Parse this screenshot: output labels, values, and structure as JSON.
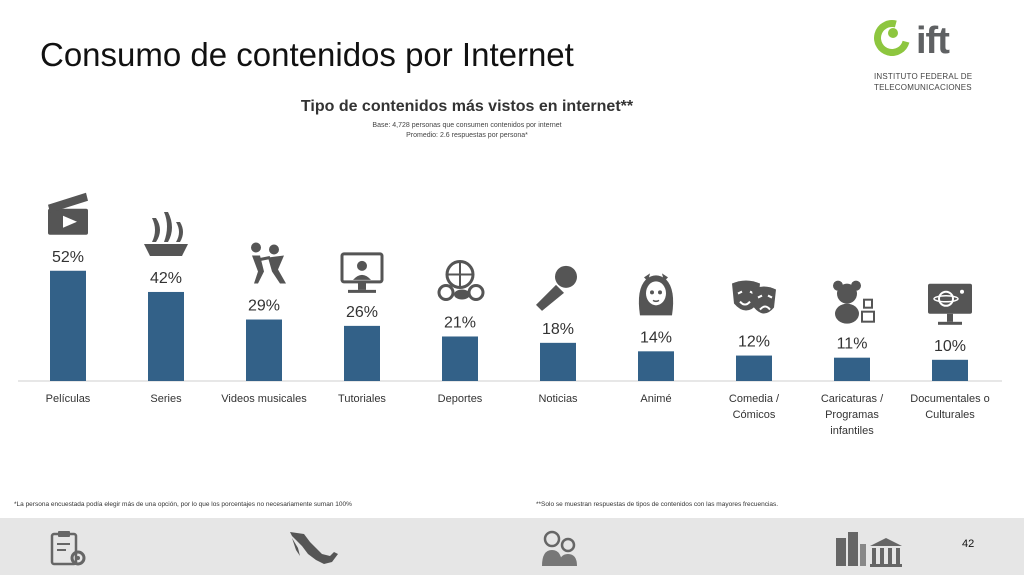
{
  "slide": {
    "title": "Consumo de contenidos por Internet",
    "page_number": "42"
  },
  "logo": {
    "word": "ift",
    "line1": "INSTITUTO FEDERAL DE",
    "line2": "TELECOMUNICACIONES",
    "color": "#8dc63f"
  },
  "chart_data": {
    "type": "bar",
    "title": "Tipo de contenidos más vistos en internet**",
    "subtitle": "Base: 4,728 personas que consumen contenidos por internet",
    "subtitle2": "Promedio: 2.6 respuestas por persona*",
    "categories": [
      [
        "Películas"
      ],
      [
        "Series"
      ],
      [
        "Videos musicales"
      ],
      [
        "Tutoriales"
      ],
      [
        "Deportes"
      ],
      [
        "Noticias"
      ],
      [
        "Animé"
      ],
      [
        "Comedia /",
        "Cómicos"
      ],
      [
        "Caricaturas /",
        "Programas",
        "infantiles"
      ],
      [
        "Documentales o",
        "Culturales"
      ]
    ],
    "values": [
      52,
      42,
      29,
      26,
      21,
      18,
      14,
      12,
      11,
      10
    ],
    "labels": [
      "52%",
      "42%",
      "29%",
      "26%",
      "21%",
      "18%",
      "14%",
      "12%",
      "11%",
      "10%"
    ],
    "icons": [
      "clapperboard-icon",
      "ship-icon",
      "dancers-icon",
      "tutorial-screen-icon",
      "sports-balls-icon",
      "microphone-icon",
      "anime-girl-icon",
      "theater-masks-icon",
      "teddy-bear-icon",
      "space-monitor-icon"
    ],
    "bar_color": "#336188",
    "icon_color": "#555555",
    "ylim": [
      0,
      60
    ]
  },
  "notes": {
    "left": "*La persona encuestada podía elegir más de una opción, por lo que los porcentajes no necesariamente suman 100%",
    "right": "**Solo se muestran respuestas de tipos de contenidos con las mayores frecuencias."
  },
  "footer": {
    "icons": [
      "clipboard-gear-icon",
      "mexico-map-icon",
      "people-icon",
      "city-icon"
    ],
    "background": "#e6e6e6"
  }
}
